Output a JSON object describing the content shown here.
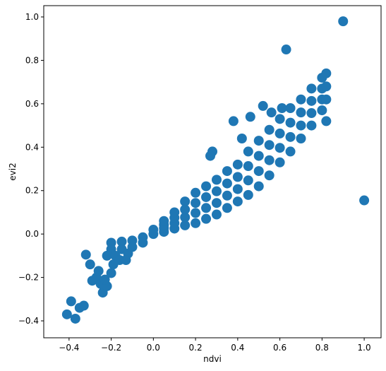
{
  "chart_data": {
    "type": "scatter",
    "xlabel": "ndvi",
    "ylabel": "evi2",
    "color": "#1f77b4",
    "x": [
      0,
      0,
      0.05,
      0.05,
      0.05,
      0.05,
      0.1,
      0.1,
      0.1,
      0.1,
      0.15,
      0.15,
      0.15,
      0.15,
      0.2,
      0.2,
      0.2,
      0.2,
      0.25,
      0.25,
      0.25,
      0.25,
      0.3,
      0.3,
      0.3,
      0.3,
      0.35,
      0.35,
      0.35,
      0.35,
      0.4,
      0.4,
      0.4,
      0.4,
      0.45,
      0.45,
      0.45,
      0.45,
      0.5,
      0.5,
      0.5,
      0.5,
      0.55,
      0.55,
      0.55,
      0.55,
      0.6,
      0.6,
      0.6,
      0.6,
      0.65,
      0.65,
      0.65,
      0.65,
      0.7,
      0.7,
      0.7,
      0.7,
      0.75,
      0.75,
      0.75,
      0.75,
      0.8,
      0.8,
      0.8,
      0.8,
      0.82,
      0.82,
      0.82,
      -0.2,
      -0.2,
      -0.15,
      -0.15,
      -0.1,
      -0.1,
      -0.05,
      -0.05,
      -0.22,
      -0.18,
      -0.12,
      0.9,
      0.63,
      1.0,
      0.82,
      -0.41,
      -0.37,
      -0.39,
      -0.35,
      -0.33,
      -0.32,
      -0.3,
      -0.29,
      -0.27,
      -0.25,
      -0.24,
      -0.22,
      -0.23,
      -0.26,
      -0.2,
      -0.19,
      -0.16,
      -0.13,
      0.38,
      0.52,
      0.56,
      0.42,
      0.28,
      0.27,
      0.61,
      0.46
    ],
    "values": [
      0,
      0.02,
      0.01,
      0.027,
      0.043,
      0.06,
      0.025,
      0.05,
      0.075,
      0.1,
      0.04,
      0.077,
      0.113,
      0.15,
      0.05,
      0.097,
      0.143,
      0.19,
      0.07,
      0.12,
      0.17,
      0.22,
      0.09,
      0.143,
      0.197,
      0.25,
      0.12,
      0.177,
      0.233,
      0.29,
      0.15,
      0.207,
      0.263,
      0.32,
      0.18,
      0.247,
      0.313,
      0.38,
      0.22,
      0.29,
      0.36,
      0.43,
      0.27,
      0.34,
      0.41,
      0.48,
      0.33,
      0.397,
      0.463,
      0.53,
      0.38,
      0.447,
      0.513,
      0.58,
      0.44,
      0.5,
      0.56,
      0.62,
      0.5,
      0.557,
      0.613,
      0.67,
      0.57,
      0.62,
      0.67,
      0.72,
      0.62,
      0.68,
      0.74,
      -0.04,
      -0.07,
      -0.035,
      -0.07,
      -0.03,
      -0.06,
      -0.015,
      -0.04,
      -0.1,
      -0.1,
      -0.09,
      0.98,
      0.85,
      0.155,
      0.52,
      -0.37,
      -0.39,
      -0.31,
      -0.34,
      -0.33,
      -0.095,
      -0.14,
      -0.215,
      -0.2,
      -0.23,
      -0.27,
      -0.24,
      -0.21,
      -0.17,
      -0.18,
      -0.14,
      -0.12,
      -0.12,
      0.52,
      0.59,
      0.56,
      0.44,
      0.38,
      0.36,
      0.58,
      0.54
    ],
    "xlim": [
      -0.52,
      1.08
    ],
    "ylim": [
      -0.478,
      1.052
    ],
    "xticks": [
      {
        "value": -0.4,
        "label": "−0.4"
      },
      {
        "value": -0.2,
        "label": "−0.2"
      },
      {
        "value": 0,
        "label": "0.0"
      },
      {
        "value": 0.2,
        "label": "0.2"
      },
      {
        "value": 0.4,
        "label": "0.4"
      },
      {
        "value": 0.6,
        "label": "0.6"
      },
      {
        "value": 0.8,
        "label": "0.8"
      },
      {
        "value": 1,
        "label": "1.0"
      }
    ],
    "yticks": [
      {
        "value": -0.4,
        "label": "−0.4"
      },
      {
        "value": -0.2,
        "label": "−0.2"
      },
      {
        "value": 0,
        "label": "0.0"
      },
      {
        "value": 0.2,
        "label": "0.2"
      },
      {
        "value": 0.4,
        "label": "0.4"
      },
      {
        "value": 0.6,
        "label": "0.6"
      },
      {
        "value": 0.8,
        "label": "0.8"
      },
      {
        "value": 1,
        "label": "1.0"
      }
    ]
  }
}
